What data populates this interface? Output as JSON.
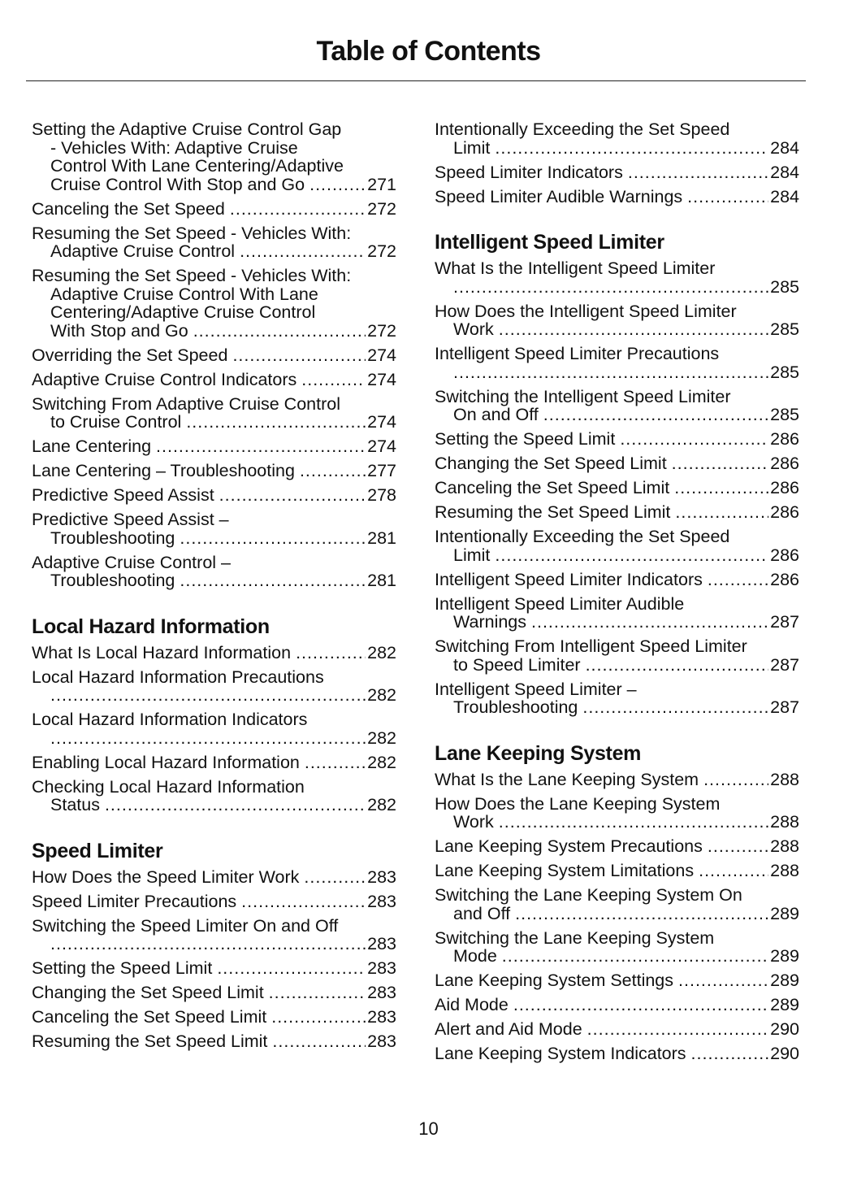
{
  "header": {
    "title": "Table of Contents"
  },
  "columns": [
    {
      "sections": [
        {
          "heading": "",
          "entries": [
            {
              "lines": [
                "Setting the Adaptive Cruise Control Gap",
                "- Vehicles With: Adaptive Cruise",
                "Control With Lane Centering/Adaptive",
                "Cruise Control With Stop and Go"
              ],
              "page": "271"
            },
            {
              "lines": [
                "Canceling the Set Speed"
              ],
              "page": "272"
            },
            {
              "lines": [
                "Resuming the Set Speed - Vehicles With:",
                "Adaptive Cruise Control"
              ],
              "page": "272"
            },
            {
              "lines": [
                "Resuming the Set Speed - Vehicles With:",
                "Adaptive Cruise Control With Lane",
                "Centering/Adaptive Cruise Control",
                "With Stop and Go"
              ],
              "page": "272"
            },
            {
              "lines": [
                "Overriding the Set Speed"
              ],
              "page": "274"
            },
            {
              "lines": [
                "Adaptive Cruise Control Indicators"
              ],
              "page": "274"
            },
            {
              "lines": [
                "Switching From Adaptive Cruise Control",
                "to Cruise Control"
              ],
              "page": "274"
            },
            {
              "lines": [
                "Lane Centering"
              ],
              "page": "274"
            },
            {
              "lines": [
                "Lane Centering – Troubleshooting"
              ],
              "page": "277"
            },
            {
              "lines": [
                "Predictive Speed Assist"
              ],
              "page": "278"
            },
            {
              "lines": [
                "Predictive Speed Assist –",
                "Troubleshooting"
              ],
              "page": "281"
            },
            {
              "lines": [
                "Adaptive Cruise Control –",
                "Troubleshooting"
              ],
              "page": "281"
            }
          ]
        },
        {
          "heading": "Local Hazard Information",
          "entries": [
            {
              "lines": [
                "What Is Local Hazard Information"
              ],
              "page": "282"
            },
            {
              "lines": [
                "Local Hazard Information Precautions",
                ""
              ],
              "page": "282"
            },
            {
              "lines": [
                "Local Hazard Information Indicators",
                ""
              ],
              "page": "282"
            },
            {
              "lines": [
                "Enabling Local Hazard Information"
              ],
              "page": "282"
            },
            {
              "lines": [
                "Checking Local Hazard Information",
                "Status"
              ],
              "page": "282"
            }
          ]
        },
        {
          "heading": "Speed Limiter",
          "entries": [
            {
              "lines": [
                "How Does the Speed Limiter Work"
              ],
              "page": "283"
            },
            {
              "lines": [
                "Speed Limiter Precautions"
              ],
              "page": "283"
            },
            {
              "lines": [
                "Switching the Speed Limiter On and Off",
                ""
              ],
              "page": "283"
            },
            {
              "lines": [
                "Setting the Speed Limit"
              ],
              "page": "283"
            },
            {
              "lines": [
                "Changing the Set Speed Limit"
              ],
              "page": "283"
            },
            {
              "lines": [
                "Canceling the Set Speed Limit"
              ],
              "page": "283"
            },
            {
              "lines": [
                "Resuming the Set Speed Limit"
              ],
              "page": "283"
            }
          ]
        }
      ]
    },
    {
      "sections": [
        {
          "heading": "",
          "entries": [
            {
              "lines": [
                "Intentionally Exceeding the Set Speed",
                "Limit"
              ],
              "page": "284"
            },
            {
              "lines": [
                "Speed Limiter Indicators"
              ],
              "page": "284"
            },
            {
              "lines": [
                "Speed Limiter Audible Warnings"
              ],
              "page": "284"
            }
          ]
        },
        {
          "heading": "Intelligent Speed Limiter",
          "entries": [
            {
              "lines": [
                "What Is the Intelligent Speed Limiter",
                ""
              ],
              "page": "285"
            },
            {
              "lines": [
                "How Does the Intelligent Speed Limiter",
                "Work"
              ],
              "page": "285"
            },
            {
              "lines": [
                "Intelligent Speed Limiter Precautions",
                ""
              ],
              "page": "285"
            },
            {
              "lines": [
                "Switching the Intelligent Speed Limiter",
                "On and Off"
              ],
              "page": "285"
            },
            {
              "lines": [
                "Setting the Speed Limit"
              ],
              "page": "286"
            },
            {
              "lines": [
                "Changing the Set Speed Limit"
              ],
              "page": "286"
            },
            {
              "lines": [
                "Canceling the Set Speed Limit"
              ],
              "page": "286"
            },
            {
              "lines": [
                "Resuming the Set Speed Limit"
              ],
              "page": "286"
            },
            {
              "lines": [
                "Intentionally Exceeding the Set Speed",
                "Limit"
              ],
              "page": "286"
            },
            {
              "lines": [
                "Intelligent Speed Limiter Indicators"
              ],
              "page": "286"
            },
            {
              "lines": [
                "Intelligent Speed Limiter Audible",
                "Warnings"
              ],
              "page": "287"
            },
            {
              "lines": [
                "Switching From Intelligent Speed Limiter",
                "to Speed Limiter"
              ],
              "page": "287"
            },
            {
              "lines": [
                "Intelligent Speed Limiter –",
                "Troubleshooting"
              ],
              "page": "287"
            }
          ]
        },
        {
          "heading": "Lane Keeping System",
          "entries": [
            {
              "lines": [
                "What Is the Lane Keeping System"
              ],
              "page": "288"
            },
            {
              "lines": [
                "How Does the Lane Keeping System",
                "Work"
              ],
              "page": "288"
            },
            {
              "lines": [
                "Lane Keeping System Precautions"
              ],
              "page": "288"
            },
            {
              "lines": [
                "Lane Keeping System Limitations"
              ],
              "page": "288"
            },
            {
              "lines": [
                "Switching the Lane Keeping System On",
                "and Off"
              ],
              "page": "289"
            },
            {
              "lines": [
                "Switching the Lane Keeping System",
                "Mode"
              ],
              "page": "289"
            },
            {
              "lines": [
                "Lane Keeping System Settings"
              ],
              "page": "289"
            },
            {
              "lines": [
                "Aid Mode"
              ],
              "page": "289"
            },
            {
              "lines": [
                "Alert and Aid Mode"
              ],
              "page": "290"
            },
            {
              "lines": [
                "Lane Keeping System Indicators"
              ],
              "page": "290"
            }
          ]
        }
      ]
    }
  ],
  "footer": {
    "page_number": "10"
  }
}
